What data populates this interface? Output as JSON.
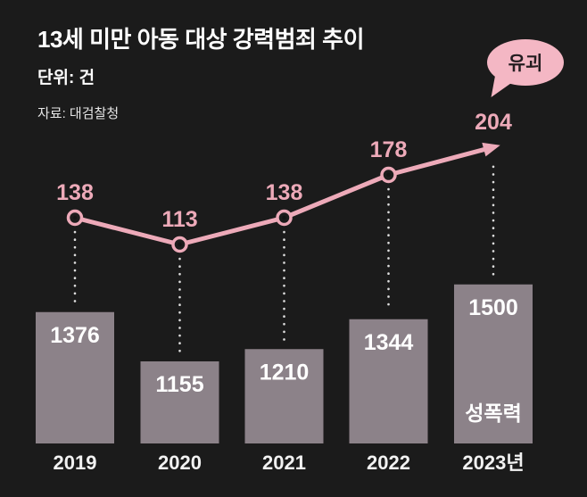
{
  "header": {
    "title": "13세 미만 아동 대상 강력범죄 추이",
    "unit": "단위: 건",
    "source": "자료: 대검찰청"
  },
  "annotations": {
    "bubble_label": "유괴"
  },
  "colors": {
    "background": "#1b1b1b",
    "line_pink": "#edaab9",
    "bar_gray": "#8c8289",
    "bubble_pink": "#f4b7c4",
    "value_text_white": "#ffffff",
    "connector_dots": "#dddddd"
  },
  "chart_data": {
    "type": "combo",
    "title": "13세 미만 아동 대상 강력범죄 추이",
    "ylabel": "건",
    "grid": false,
    "legend_position": "inline-annotations",
    "categories": [
      "2019",
      "2020",
      "2021",
      "2022",
      "2023년"
    ],
    "series": [
      {
        "name": "유괴",
        "type": "line",
        "values": [
          138,
          113,
          138,
          178,
          204
        ],
        "color": "#edaab9"
      },
      {
        "name": "성폭력",
        "type": "bar",
        "values": [
          1376,
          1155,
          1210,
          1344,
          1500
        ],
        "color": "#8c8289"
      }
    ]
  }
}
